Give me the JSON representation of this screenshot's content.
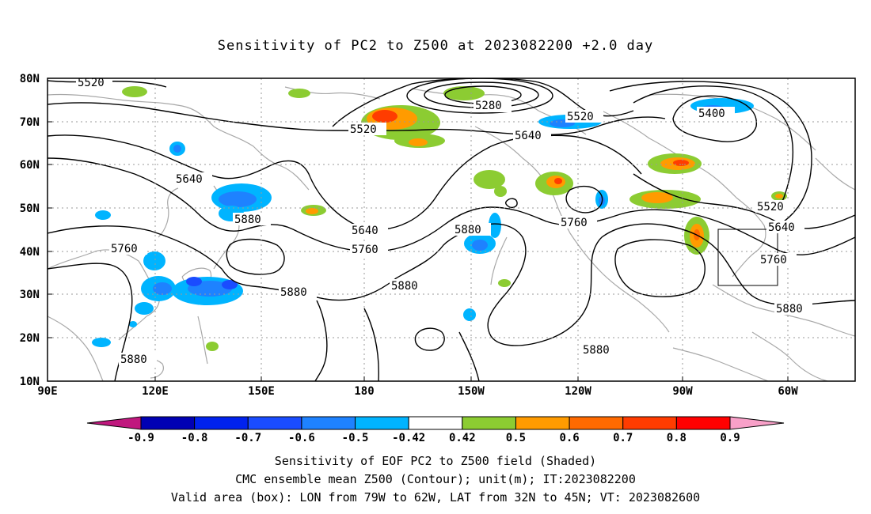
{
  "title": "Sensitivity of PC2 to Z500 at 2023082200 +2.0 day",
  "map": {
    "lat_labels": [
      "80N",
      "70N",
      "60N",
      "50N",
      "40N",
      "30N",
      "20N",
      "10N"
    ],
    "lon_labels": [
      "90E",
      "120E",
      "150E",
      "180",
      "150W",
      "120W",
      "90W",
      "60W"
    ],
    "contour_labels": [
      {
        "text": "5520",
        "id": "c1"
      },
      {
        "text": "5280",
        "id": "c2"
      },
      {
        "text": "5520",
        "id": "c3"
      },
      {
        "text": "5520",
        "id": "c4"
      },
      {
        "text": "5400",
        "id": "c5"
      },
      {
        "text": "5640",
        "id": "c6"
      },
      {
        "text": "5640",
        "id": "c7"
      },
      {
        "text": "5880",
        "id": "c8"
      },
      {
        "text": "5640",
        "id": "c9"
      },
      {
        "text": "5760",
        "id": "c10"
      },
      {
        "text": "5880",
        "id": "c11"
      },
      {
        "text": "5760",
        "id": "c12"
      },
      {
        "text": "5760",
        "id": "c13"
      },
      {
        "text": "5520",
        "id": "c14"
      },
      {
        "text": "5640",
        "id": "c15"
      },
      {
        "text": "5760",
        "id": "c16"
      },
      {
        "text": "5880",
        "id": "c17"
      },
      {
        "text": "5880",
        "id": "c18"
      },
      {
        "text": "5880",
        "id": "c19"
      },
      {
        "text": "5880",
        "id": "c20"
      },
      {
        "text": "5880",
        "id": "c21"
      }
    ],
    "valid_box": {
      "lon_from": "79W",
      "lon_to": "62W",
      "lat_from": "32N",
      "lat_to": "45N"
    }
  },
  "colorbar": {
    "labels": [
      "-0.9",
      "-0.8",
      "-0.7",
      "-0.6",
      "-0.5",
      "-0.42",
      "0.42",
      "0.5",
      "0.6",
      "0.7",
      "0.8",
      "0.9"
    ],
    "colors": [
      "#0000b4",
      "#0022ee",
      "#1a4cff",
      "#1e82ff",
      "#00b4ff",
      "#ffffff",
      "#8ccc32",
      "#ff9b00",
      "#ff6a00",
      "#ff3c00",
      "#ff0000"
    ],
    "low_end_color": "#c0187e",
    "high_end_color": "#f8a0c8"
  },
  "captions": {
    "line1": "Sensitivity of EOF PC2 to Z500 field (Shaded)",
    "line2": "CMC ensemble mean Z500 (Contour); unit(m); IT:2023082200",
    "line3": "Valid area (box): LON from 79W to 62W, LAT from 32N to 45N; VT: 2023082600"
  }
}
